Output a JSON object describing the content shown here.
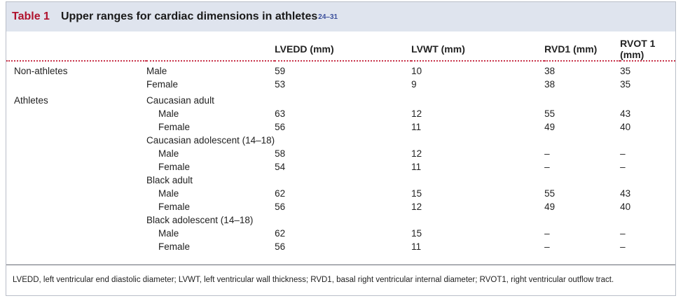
{
  "title": {
    "label": "Table 1",
    "text": "Upper ranges for cardiac dimensions in athletes",
    "refs": "24–31"
  },
  "columns": [
    "",
    "",
    "LVEDD (mm)",
    "LVWT (mm)",
    "RVD1 (mm)",
    "RVOT 1 (mm)"
  ],
  "rows": [
    [
      "Non-athletes",
      "Male",
      "59",
      "10",
      "38",
      "35"
    ],
    [
      "",
      "Female",
      "53",
      "9",
      "38",
      "35"
    ],
    [
      "Athletes",
      "Caucasian adult",
      "",
      "",
      "",
      ""
    ],
    [
      "",
      "Male",
      "63",
      "12",
      "55",
      "43"
    ],
    [
      "",
      "Female",
      "56",
      "11",
      "49",
      "40"
    ],
    [
      "",
      "Caucasian adolescent (14–18)",
      "",
      "",
      "",
      ""
    ],
    [
      "",
      "Male",
      "58",
      "12",
      "–",
      "–"
    ],
    [
      "",
      "Female",
      "54",
      "11",
      "–",
      "–"
    ],
    [
      "",
      "Black adult",
      "",
      "",
      "",
      ""
    ],
    [
      "",
      "Male",
      "62",
      "15",
      "55",
      "43"
    ],
    [
      "",
      "Female",
      "56",
      "12",
      "49",
      "40"
    ],
    [
      "",
      "Black adolescent (14–18)",
      "",
      "",
      "",
      ""
    ],
    [
      "",
      "Male",
      "62",
      "15",
      "–",
      "–"
    ],
    [
      "",
      "Female",
      "56",
      "11",
      "–",
      "–"
    ]
  ],
  "footnote": "LVEDD, left ventricular end diastolic diameter; LVWT, left ventricular wall thickness; RVD1, basal right ventricular internal diameter; RVOT1, right ventricular outflow tract."
}
